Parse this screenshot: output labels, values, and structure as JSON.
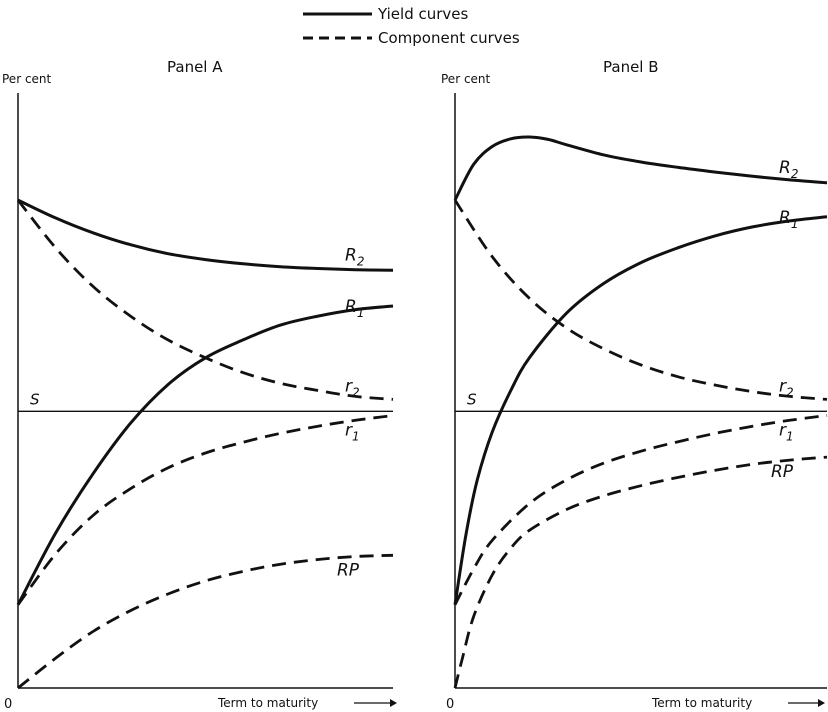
{
  "legend": {
    "solid_label": "Yield curves",
    "dashed_label": "Component curves"
  },
  "colors": {
    "ink": "#111111",
    "background": "#ffffff"
  },
  "chart_data": [
    {
      "type": "line",
      "title": "Panel A",
      "ylabel": "Per cent",
      "xlabel": "Term to maturity",
      "origin_label": "0",
      "x_unit": "maturity index (0 = shortest, 100 = longest shown)",
      "xlim": [
        0,
        100
      ],
      "ylim": [
        0,
        100
      ],
      "reference_line": {
        "name": "S",
        "y": 46.5
      },
      "series": [
        {
          "name": "R2",
          "style": "solid",
          "x": [
            0,
            10,
            20,
            30,
            40,
            50,
            60,
            70,
            80,
            90,
            100
          ],
          "y": [
            82,
            79,
            76.5,
            74.5,
            73,
            72,
            71.3,
            70.8,
            70.5,
            70.3,
            70.2
          ]
        },
        {
          "name": "R1",
          "style": "solid",
          "x": [
            0,
            10,
            20,
            30,
            40,
            50,
            60,
            70,
            80,
            90,
            100
          ],
          "y": [
            14,
            26,
            36,
            44.5,
            51,
            55.5,
            58.5,
            61,
            62.5,
            63.6,
            64.2
          ]
        },
        {
          "name": "r2",
          "style": "dashed",
          "x": [
            0,
            10,
            20,
            30,
            40,
            50,
            60,
            70,
            80,
            90,
            100
          ],
          "y": [
            82,
            74,
            67.5,
            62.5,
            58.5,
            55.5,
            53,
            51.2,
            50,
            49,
            48.5
          ]
        },
        {
          "name": "r1",
          "style": "dashed",
          "x": [
            0,
            10,
            20,
            30,
            40,
            50,
            60,
            70,
            80,
            90,
            100
          ],
          "y": [
            14,
            22.5,
            29,
            33.5,
            37,
            39.5,
            41.3,
            42.8,
            44,
            45,
            45.8
          ]
        },
        {
          "name": "RP",
          "style": "dashed",
          "x": [
            0,
            10,
            20,
            30,
            40,
            50,
            60,
            70,
            80,
            90,
            100
          ],
          "y": [
            0,
            5,
            9.5,
            13,
            15.8,
            18,
            19.6,
            20.8,
            21.6,
            22.1,
            22.3
          ]
        }
      ]
    },
    {
      "type": "line",
      "title": "Panel B",
      "ylabel": "Per cent",
      "xlabel": "Term to maturity",
      "origin_label": "0",
      "x_unit": "maturity index (0 = shortest, 100 = longest shown)",
      "xlim": [
        0,
        100
      ],
      "ylim": [
        0,
        100
      ],
      "reference_line": {
        "name": "S",
        "y": 46.5
      },
      "series": [
        {
          "name": "R2",
          "style": "solid",
          "x": [
            0,
            5,
            10,
            15,
            20,
            25,
            30,
            40,
            50,
            60,
            70,
            80,
            90,
            100
          ],
          "y": [
            82,
            88,
            91,
            92.3,
            92.6,
            92.2,
            91.3,
            89.6,
            88.4,
            87.5,
            86.7,
            86,
            85.4,
            84.9
          ]
        },
        {
          "name": "R1",
          "style": "solid",
          "x": [
            0,
            3,
            6,
            10,
            15,
            20,
            30,
            40,
            50,
            60,
            70,
            80,
            90,
            100
          ],
          "y": [
            14,
            26,
            35,
            43,
            50,
            55.5,
            63,
            68,
            71.5,
            74,
            76,
            77.5,
            78.5,
            79.2
          ]
        },
        {
          "name": "r2",
          "style": "dashed",
          "x": [
            0,
            10,
            20,
            30,
            40,
            50,
            60,
            70,
            80,
            90,
            100
          ],
          "y": [
            82,
            72.5,
            65.5,
            60.5,
            57,
            54.3,
            52.3,
            50.9,
            49.8,
            49,
            48.5
          ]
        },
        {
          "name": "r1",
          "style": "dashed",
          "x": [
            0,
            5,
            10,
            20,
            30,
            40,
            50,
            60,
            70,
            80,
            90,
            100
          ],
          "y": [
            14,
            20,
            24.8,
            31,
            35,
            37.8,
            39.8,
            41.4,
            42.8,
            44,
            45,
            45.8
          ]
        },
        {
          "name": "RP",
          "style": "dashed",
          "x": [
            0,
            2,
            5,
            10,
            15,
            20,
            30,
            40,
            50,
            60,
            70,
            80,
            90,
            100
          ],
          "y": [
            0,
            5,
            12,
            19,
            23.5,
            26.5,
            30,
            32.3,
            34,
            35.4,
            36.6,
            37.6,
            38.3,
            38.8
          ]
        }
      ]
    }
  ]
}
